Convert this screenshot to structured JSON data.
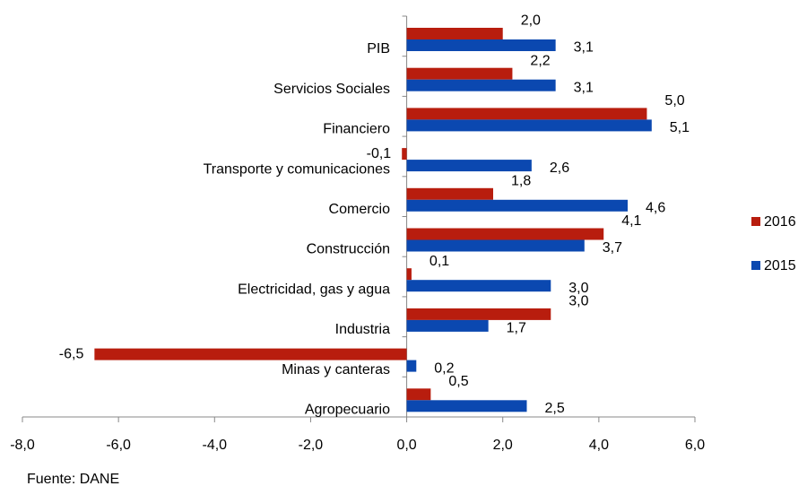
{
  "chart_data": {
    "type": "hbar",
    "categories": [
      "PIB",
      "Servicios Sociales",
      "Financiero",
      "Transporte y comunicaciones",
      "Comercio",
      "Construcción",
      "Electricidad, gas y agua",
      "Industria",
      "Minas y canteras",
      "Agropecuario"
    ],
    "series": [
      {
        "name": "2016",
        "color": "#b81d0e",
        "values": [
          2.0,
          2.2,
          5.0,
          -0.1,
          1.8,
          4.1,
          0.1,
          3.0,
          -6.5,
          0.5
        ],
        "value_labels": [
          "2,0",
          "2,2",
          "5,0",
          "-0,1",
          "1,8",
          "4,1",
          "0,1",
          "3,0",
          "-6,5",
          "0,5"
        ]
      },
      {
        "name": "2015",
        "color": "#0b48b0",
        "values": [
          3.1,
          3.1,
          5.1,
          2.6,
          4.6,
          3.7,
          3.0,
          1.7,
          0.2,
          2.5
        ],
        "value_labels": [
          "3,1",
          "3,1",
          "5,1",
          "2,6",
          "4,6",
          "3,7",
          "3,0",
          "1,7",
          "0,2",
          "2,5"
        ]
      }
    ],
    "xlim": [
      -8,
      6
    ],
    "xticks": [
      {
        "value": -8,
        "label": "-8,0"
      },
      {
        "value": -6,
        "label": "-6,0"
      },
      {
        "value": -4,
        "label": "-4,0"
      },
      {
        "value": -2,
        "label": "-2,0"
      },
      {
        "value": 0,
        "label": "0,0"
      },
      {
        "value": 2,
        "label": "2,0"
      },
      {
        "value": 4,
        "label": "4,0"
      },
      {
        "value": 6,
        "label": "6,0"
      }
    ],
    "legend": "right",
    "note": "Fuente: DANE"
  }
}
